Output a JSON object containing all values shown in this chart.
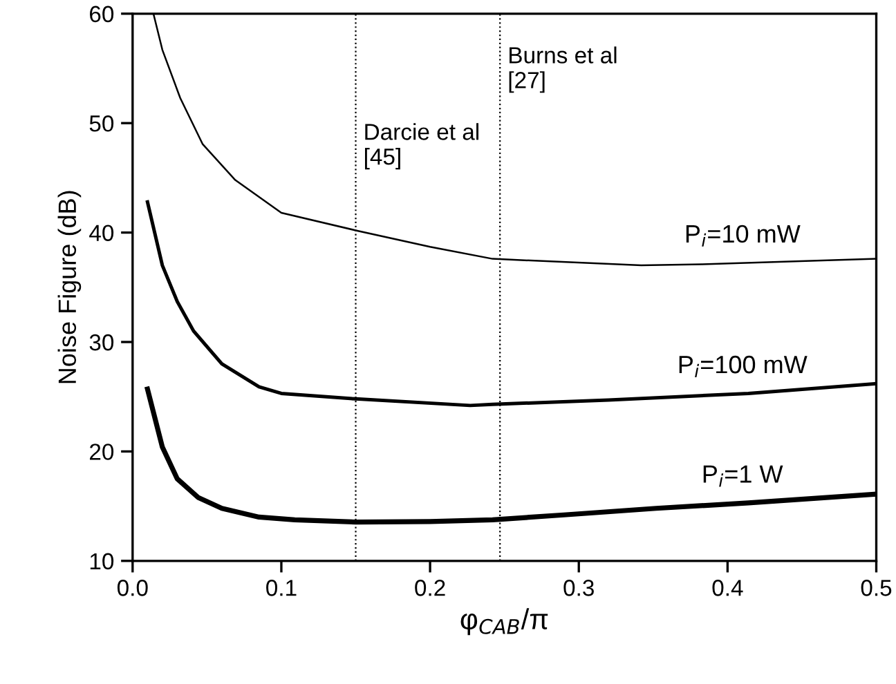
{
  "chart_data": {
    "type": "line",
    "xlabel": "φ$_{CAB}$/π",
    "ylabel": "Noise Figure (dB)",
    "xlim": [
      0,
      0.5
    ],
    "ylim": [
      10,
      60
    ],
    "xticks": [
      {
        "value": 0,
        "label": "0.0"
      },
      0.1,
      0.2,
      0.3,
      0.4,
      0.5
    ],
    "yticks": [
      10,
      20,
      30,
      40,
      50,
      60
    ],
    "grid": false,
    "legend": false,
    "marker": "none",
    "line_style": "solid",
    "series": [
      {
        "name": "P$_{i}$=10 mW",
        "color": "#000000",
        "x": [
          0.014,
          0.02,
          0.032,
          0.047,
          0.069,
          0.1,
          0.15,
          0.2,
          0.242,
          0.342,
          0.383,
          0.5
        ],
        "values": [
          60,
          56.7,
          52.3,
          48.1,
          44.8,
          41.8,
          40.2,
          38.7,
          37.6,
          37.0,
          37.1,
          37.6
        ]
      },
      {
        "name": "P$_{i}$=100 mW",
        "color": "#000000",
        "x": [
          0.01,
          0.02,
          0.03,
          0.041,
          0.06,
          0.085,
          0.1,
          0.15,
          0.227,
          0.242,
          0.32,
          0.414,
          0.5
        ],
        "values": [
          42.8,
          37.0,
          33.7,
          31.0,
          28.0,
          25.9,
          25.3,
          24.8,
          24.2,
          24.3,
          24.7,
          25.3,
          26.2
        ]
      },
      {
        "name": "P$_{i}$=1 W",
        "color": "#000000",
        "x": [
          0.01,
          0.02,
          0.03,
          0.044,
          0.06,
          0.085,
          0.109,
          0.15,
          0.2,
          0.242,
          0.29,
          0.352,
          0.414,
          0.5
        ],
        "values": [
          25.7,
          20.4,
          17.5,
          15.8,
          14.8,
          14.0,
          13.75,
          13.55,
          13.6,
          13.75,
          14.2,
          14.8,
          15.3,
          16.1
        ]
      }
    ],
    "ref_lines": [
      {
        "axis": "x",
        "value": 0.15,
        "label": "Darcie et al\n[45]",
        "color": "#000000",
        "line_style": "dotted"
      },
      {
        "axis": "x",
        "value": 0.247,
        "label": "Burns et al\n[27]",
        "color": "#000000",
        "line_style": "dotted"
      }
    ]
  }
}
